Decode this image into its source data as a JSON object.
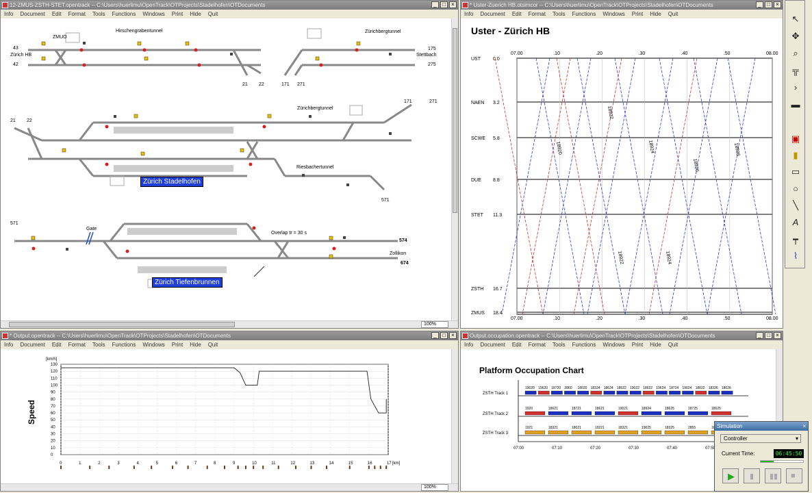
{
  "menu": [
    "Info",
    "Document",
    "Edit",
    "Format",
    "Tools",
    "Functions",
    "Windows",
    "Print",
    "Hide",
    "Quit"
  ],
  "win1": {
    "title": "12-ZMUS-ZSTH-STET.opentrack  --  C:\\Users\\huerlimu\\OpenTrack\\OTProjects\\Stadelhofen\\OTDocuments",
    "zoom": "100%",
    "labels": {
      "zmuo": "ZMUO",
      "hirschengraben": "Hirschengrabentunnel",
      "zuerichberg1": "Zürichbergtunnel",
      "zurich_hb": "Zürich HB",
      "n43": "43",
      "n42": "42",
      "n175": "175",
      "n275": "275",
      "stettbach": "Stettbach",
      "n21a": "21",
      "n22a": "22",
      "n171a": "171",
      "n271a": "271",
      "zuerichberg2": "Zürichbergtunnel",
      "n171b": "171",
      "n271b": "271",
      "n21b": "21",
      "n22b": "22",
      "riesbach": "Riesbachertunnel",
      "n571a": "571",
      "stadelhofen": "Zürich Stadelhofen",
      "n571b": "571",
      "gate": "Gate",
      "overlap": "Overlap tr = 30 s",
      "n574": "574",
      "zollikon": "Zollikon",
      "n674": "674",
      "tiefenbrunnen": "Zürich Tiefenbrunnen"
    }
  },
  "win2": {
    "title": "* Uster-Zuerich HB.otsimcor  --  C:\\Users\\huerlimu\\OpenTrack\\OTProjects\\Stadelhofen\\OTDocuments",
    "chart_title": "Uster - Zürich HB",
    "stations": [
      {
        "name": "UST",
        "km": "0.0"
      },
      {
        "name": "NAEN",
        "km": "3.2"
      },
      {
        "name": "SCWE",
        "km": "5.8"
      },
      {
        "name": "DUE",
        "km": "8.8"
      },
      {
        "name": "STET",
        "km": "11.3"
      },
      {
        "name": "ZSTH",
        "km": "16.7"
      },
      {
        "name": "ZMUS",
        "km": "18.4"
      }
    ],
    "time_ticks": [
      "07.00",
      ".10",
      ".20",
      ".30",
      ".40",
      ".50",
      "08.00"
    ],
    "train_labels": [
      "18922",
      "18924",
      "18926",
      "18920",
      "18922",
      "18924",
      "18926"
    ]
  },
  "chart_data": [
    {
      "type": "line",
      "title": "Uster - Zürich HB",
      "x_ticks": [
        "07.00",
        ".10",
        ".20",
        ".30",
        ".40",
        ".50",
        "08.00"
      ],
      "y_categories": [
        "UST 0.0",
        "NAEN 3.2",
        "SCWE 5.8",
        "DUE 8.8",
        "STET 11.3",
        "ZSTH 16.7",
        "ZMUS 18.4"
      ],
      "series": [
        {
          "color": "#d03030",
          "style": "dashed"
        },
        {
          "color": "#2b3bd0",
          "style": "dashed"
        }
      ]
    },
    {
      "type": "line",
      "ylabel": "Speed",
      "yunit": "[km/h]",
      "xunit": "[km]",
      "x": [
        0,
        9.0,
        9.3,
        9.6,
        10.2,
        10.3,
        15.9,
        16.1,
        16.3,
        16.5,
        16.9,
        16.9
      ],
      "y": [
        125,
        125,
        118,
        100,
        100,
        120,
        120,
        80,
        70,
        60,
        60,
        80
      ],
      "yticks": [
        0,
        10,
        20,
        30,
        40,
        50,
        60,
        70,
        80,
        90,
        100,
        110,
        120,
        130
      ],
      "xticks": [
        0,
        1,
        2,
        3,
        4,
        5,
        6,
        7,
        8,
        9,
        10,
        11,
        12,
        13,
        14,
        15,
        16,
        17
      ],
      "ylim": [
        0,
        130
      ],
      "xlim": [
        0,
        17
      ]
    },
    {
      "type": "bar",
      "title": "Platform Occupation Chart",
      "categories": [
        "ZSTH Track 1",
        "ZSTH Track 2",
        "ZSTH Track 3"
      ],
      "x_ticks": [
        "07:00",
        "07:10",
        "07:20",
        "07:30",
        "07:40",
        "07:50"
      ]
    }
  ],
  "win3": {
    "title": "* Output.opentrack  --  C:\\Users\\huerlimu\\OpenTrack\\OTProjects\\Stadelhofen\\OTDocuments",
    "ylabel": "Speed",
    "yunit": "[km/h]",
    "xunit": "[km]",
    "zoom": "100%"
  },
  "win4": {
    "title": "Output.occupation.opentrack  --  C:\\Users\\huerlimu\\OpenTrack\\OTProjects\\Stadelhofen\\OTDocuments",
    "chart_title": "Platform Occupation Chart",
    "tracks": [
      "ZSTH Track 1",
      "ZSTH Track 2",
      "ZSTH Track 3"
    ],
    "time_ticks": [
      "07:00",
      "07:10",
      "07:20",
      "07:30",
      "07:40",
      "07:50"
    ],
    "track1_labels": [
      "19020",
      "19620",
      "18720",
      "2860",
      "18020",
      "18324",
      "18624",
      "18522",
      "19022",
      "18622",
      "19624",
      "18724",
      "19024",
      "18022",
      "18326",
      "18626"
    ],
    "track2_labels": [
      "1920",
      "18621",
      "18721",
      "18621",
      "19021",
      "18924",
      "18625",
      "18725",
      "18625"
    ],
    "track3_labels": [
      "1921",
      "18321",
      "18021",
      "19221",
      "18321",
      "19025",
      "18325",
      "2855",
      "18025"
    ]
  },
  "simulation": {
    "title": "Simulation",
    "mode": "Controller",
    "current_time_label": "Current Time:",
    "current_time": "06:45:50",
    "progress": 0.3
  },
  "tools": [
    "pointer-icon",
    "move-icon",
    "zoom-icon",
    "track-icon",
    "arrow-icon",
    "signal-icon",
    "station-icon",
    "route-icon",
    "rectangle-icon",
    "circle-icon",
    "line-icon",
    "text-icon",
    "ruler-icon",
    "chart-icon"
  ]
}
